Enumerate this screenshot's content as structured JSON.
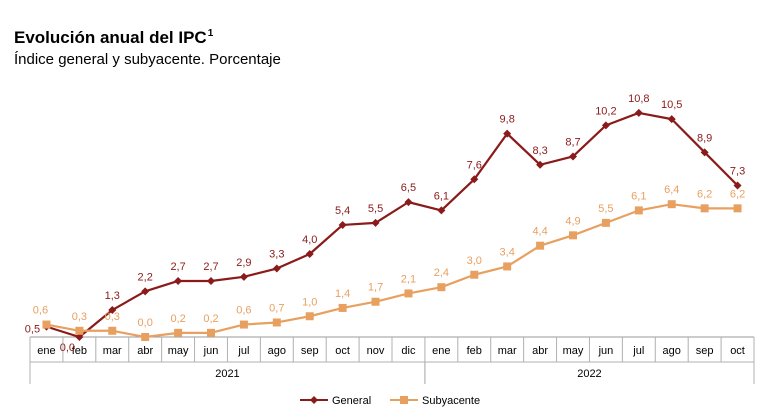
{
  "chart_data": {
    "type": "line",
    "title": "Evolución anual del IPC",
    "title_superscript": "1",
    "subtitle": "Índice general y subyacente. Porcentaje",
    "categories": [
      "ene",
      "feb",
      "mar",
      "abr",
      "may",
      "jun",
      "jul",
      "ago",
      "sep",
      "oct",
      "nov",
      "dic",
      "ene",
      "feb",
      "mar",
      "abr",
      "may",
      "jun",
      "jul",
      "ago",
      "sep",
      "oct"
    ],
    "year_groups": [
      {
        "label": "2021",
        "start": 0,
        "end": 11
      },
      {
        "label": "2022",
        "start": 12,
        "end": 21
      }
    ],
    "series": [
      {
        "name": "General",
        "color": "#8b1a1a",
        "marker": "diamond",
        "values": [
          0.5,
          0.0,
          1.3,
          2.2,
          2.7,
          2.7,
          2.9,
          3.3,
          4.0,
          5.4,
          5.5,
          6.5,
          6.1,
          7.6,
          9.8,
          8.3,
          8.7,
          10.2,
          10.8,
          10.5,
          8.9,
          7.3
        ],
        "labels": [
          "0,5",
          "0,0",
          "1,3",
          "2,2",
          "2,7",
          "2,7",
          "2,9",
          "3,3",
          "4,0",
          "5,4",
          "5,5",
          "6,5",
          "6,1",
          "7,6",
          "9,8",
          "8,3",
          "8,7",
          "10,2",
          "10,8",
          "10,5",
          "8,9",
          "7,3"
        ]
      },
      {
        "name": "Subyacente",
        "color": "#e8a060",
        "marker": "square",
        "values": [
          0.6,
          0.3,
          0.3,
          0.0,
          0.2,
          0.2,
          0.6,
          0.7,
          1.0,
          1.4,
          1.7,
          2.1,
          2.4,
          3.0,
          3.4,
          4.4,
          4.9,
          5.5,
          6.1,
          6.4,
          6.2,
          6.2
        ],
        "labels": [
          "0,6",
          "0,3",
          "0,3",
          "0,0",
          "0,2",
          "0,2",
          "0,6",
          "0,7",
          "1,0",
          "1,4",
          "1,7",
          "2,1",
          "2,4",
          "3,0",
          "3,4",
          "4,4",
          "4,9",
          "5,5",
          "6,1",
          "6,4",
          "6,2",
          "6,2"
        ]
      }
    ],
    "ylim": [
      0,
      12
    ],
    "legend": "bottom-center",
    "grid": false
  }
}
